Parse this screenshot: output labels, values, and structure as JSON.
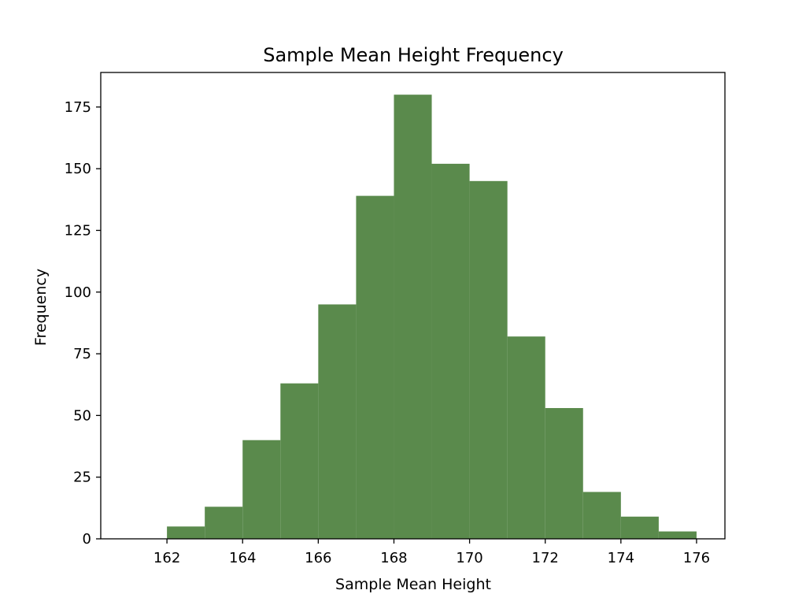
{
  "chart_data": {
    "type": "bar",
    "title": "Sample Mean Height Frequency",
    "xlabel": "Sample Mean Height",
    "ylabel": "Frequency",
    "bin_edges": [
      162,
      163,
      164,
      165,
      166,
      167,
      168,
      169,
      170,
      171,
      172,
      173,
      174,
      175,
      176
    ],
    "values": [
      5,
      13,
      40,
      63,
      95,
      139,
      180,
      152,
      145,
      82,
      53,
      19,
      9,
      3
    ],
    "xlim": [
      160.25,
      176.75
    ],
    "ylim": [
      0,
      189
    ],
    "x_ticks": [
      "162",
      "164",
      "166",
      "168",
      "170",
      "172",
      "174",
      "176"
    ],
    "y_ticks": [
      "0",
      "25",
      "50",
      "75",
      "100",
      "125",
      "150",
      "175"
    ],
    "bar_color": "#5a8a4c",
    "grid": false,
    "legend": "none"
  }
}
